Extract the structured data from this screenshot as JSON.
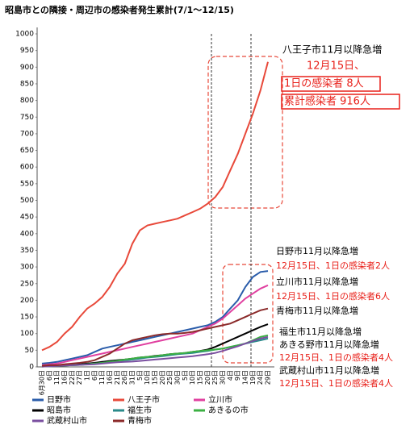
{
  "chart_data": {
    "type": "line",
    "title": "昭島市との隣接・周辺市の感染者発生累計(7/1～12/15)",
    "categories": [
      "6月30日",
      "6日",
      "11日",
      "16日",
      "22日",
      "27日",
      "1日",
      "6日",
      "11日",
      "16日",
      "21日",
      "26日",
      "31日",
      "5日",
      "10日",
      "15日",
      "20日",
      "25日",
      "30日",
      "5日",
      "10日",
      "15日",
      "20日",
      "25日",
      "30日",
      "4日",
      "9日",
      "14日",
      "19日",
      "24日",
      "29日"
    ],
    "ylim": [
      0,
      1000
    ],
    "yticks": [
      0,
      50,
      100,
      150,
      200,
      250,
      300,
      350,
      400,
      450,
      500,
      550,
      600,
      650,
      700,
      750,
      800,
      850,
      900,
      950,
      1000
    ],
    "grid": false,
    "series": [
      {
        "name": "日野市",
        "color": "#2a5caa",
        "values": [
          10,
          12,
          15,
          20,
          25,
          30,
          35,
          45,
          55,
          60,
          65,
          70,
          75,
          80,
          85,
          90,
          95,
          100,
          105,
          110,
          115,
          120,
          125,
          135,
          150,
          175,
          200,
          240,
          270,
          285,
          288
        ]
      },
      {
        "name": "八王子市",
        "color": "#e8493a",
        "values": [
          50,
          60,
          75,
          100,
          120,
          150,
          175,
          190,
          210,
          240,
          280,
          310,
          370,
          410,
          425,
          430,
          435,
          440,
          445,
          455,
          465,
          475,
          490,
          510,
          540,
          590,
          640,
          700,
          760,
          830,
          916
        ]
      },
      {
        "name": "立川市",
        "color": "#e040a0",
        "values": [
          5,
          8,
          10,
          15,
          20,
          25,
          30,
          35,
          40,
          45,
          50,
          55,
          60,
          65,
          70,
          75,
          80,
          85,
          90,
          95,
          100,
          110,
          120,
          130,
          145,
          165,
          185,
          205,
          220,
          235,
          245
        ]
      },
      {
        "name": "昭島市",
        "color": "#000000",
        "values": [
          2,
          3,
          4,
          5,
          6,
          8,
          10,
          12,
          15,
          18,
          20,
          22,
          25,
          28,
          30,
          33,
          35,
          38,
          40,
          42,
          45,
          48,
          52,
          60,
          70,
          80,
          90,
          100,
          110,
          120,
          128
        ]
      },
      {
        "name": "福生市",
        "color": "#2a8a8a",
        "values": [
          1,
          2,
          3,
          4,
          5,
          6,
          8,
          10,
          12,
          15,
          18,
          20,
          22,
          25,
          28,
          30,
          32,
          35,
          38,
          40,
          42,
          45,
          48,
          52,
          55,
          60,
          65,
          70,
          75,
          80,
          85
        ]
      },
      {
        "name": "あきるの市",
        "color": "#3cb043",
        "values": [
          1,
          2,
          3,
          4,
          5,
          6,
          8,
          10,
          12,
          15,
          18,
          22,
          25,
          28,
          30,
          32,
          35,
          38,
          40,
          42,
          45,
          48,
          50,
          52,
          55,
          60,
          65,
          70,
          80,
          90,
          95
        ]
      },
      {
        "name": "武蔵村山市",
        "color": "#7a4fa0",
        "values": [
          1,
          2,
          3,
          4,
          5,
          6,
          7,
          8,
          10,
          12,
          14,
          15,
          16,
          18,
          20,
          22,
          24,
          26,
          28,
          30,
          32,
          35,
          38,
          42,
          48,
          55,
          62,
          70,
          78,
          85,
          90
        ]
      },
      {
        "name": "青梅市",
        "color": "#8b2a2a",
        "values": [
          3,
          5,
          5,
          8,
          10,
          12,
          15,
          20,
          30,
          40,
          55,
          70,
          80,
          85,
          90,
          95,
          98,
          100,
          100,
          102,
          105,
          110,
          115,
          120,
          125,
          130,
          140,
          150,
          160,
          170,
          175
        ]
      }
    ],
    "annotations": [
      {
        "text": "八王子市11月以降急増",
        "color": "#000000"
      },
      {
        "text": "12月15日、",
        "color": "#e8201a"
      },
      {
        "text": "1日の感染者 8人",
        "color": "#e8201a"
      },
      {
        "text": "累計感染者 916人",
        "color": "#e8201a"
      },
      {
        "text": "日野市11月以降急増",
        "color": "#000000"
      },
      {
        "text": "12月15日、1日の感染者2人",
        "color": "#e8201a"
      },
      {
        "text": "立川市11月以降急増",
        "color": "#000000"
      },
      {
        "text": "12月15日、1日の感染者6人",
        "color": "#e8201a"
      },
      {
        "text": "青梅市11月以降急増",
        "color": "#000000"
      },
      {
        "text": "福生市11月以降急増",
        "color": "#000000"
      },
      {
        "text": "あきる野市11月以降急増",
        "color": "#000000"
      },
      {
        "text": "12月15日、1日の感染者4人",
        "color": "#e8201a"
      },
      {
        "text": "武蔵村山市11月以降急増",
        "color": "#000000"
      },
      {
        "text": "12月15日、1日の感染者4人",
        "color": "#e8201a"
      }
    ]
  }
}
